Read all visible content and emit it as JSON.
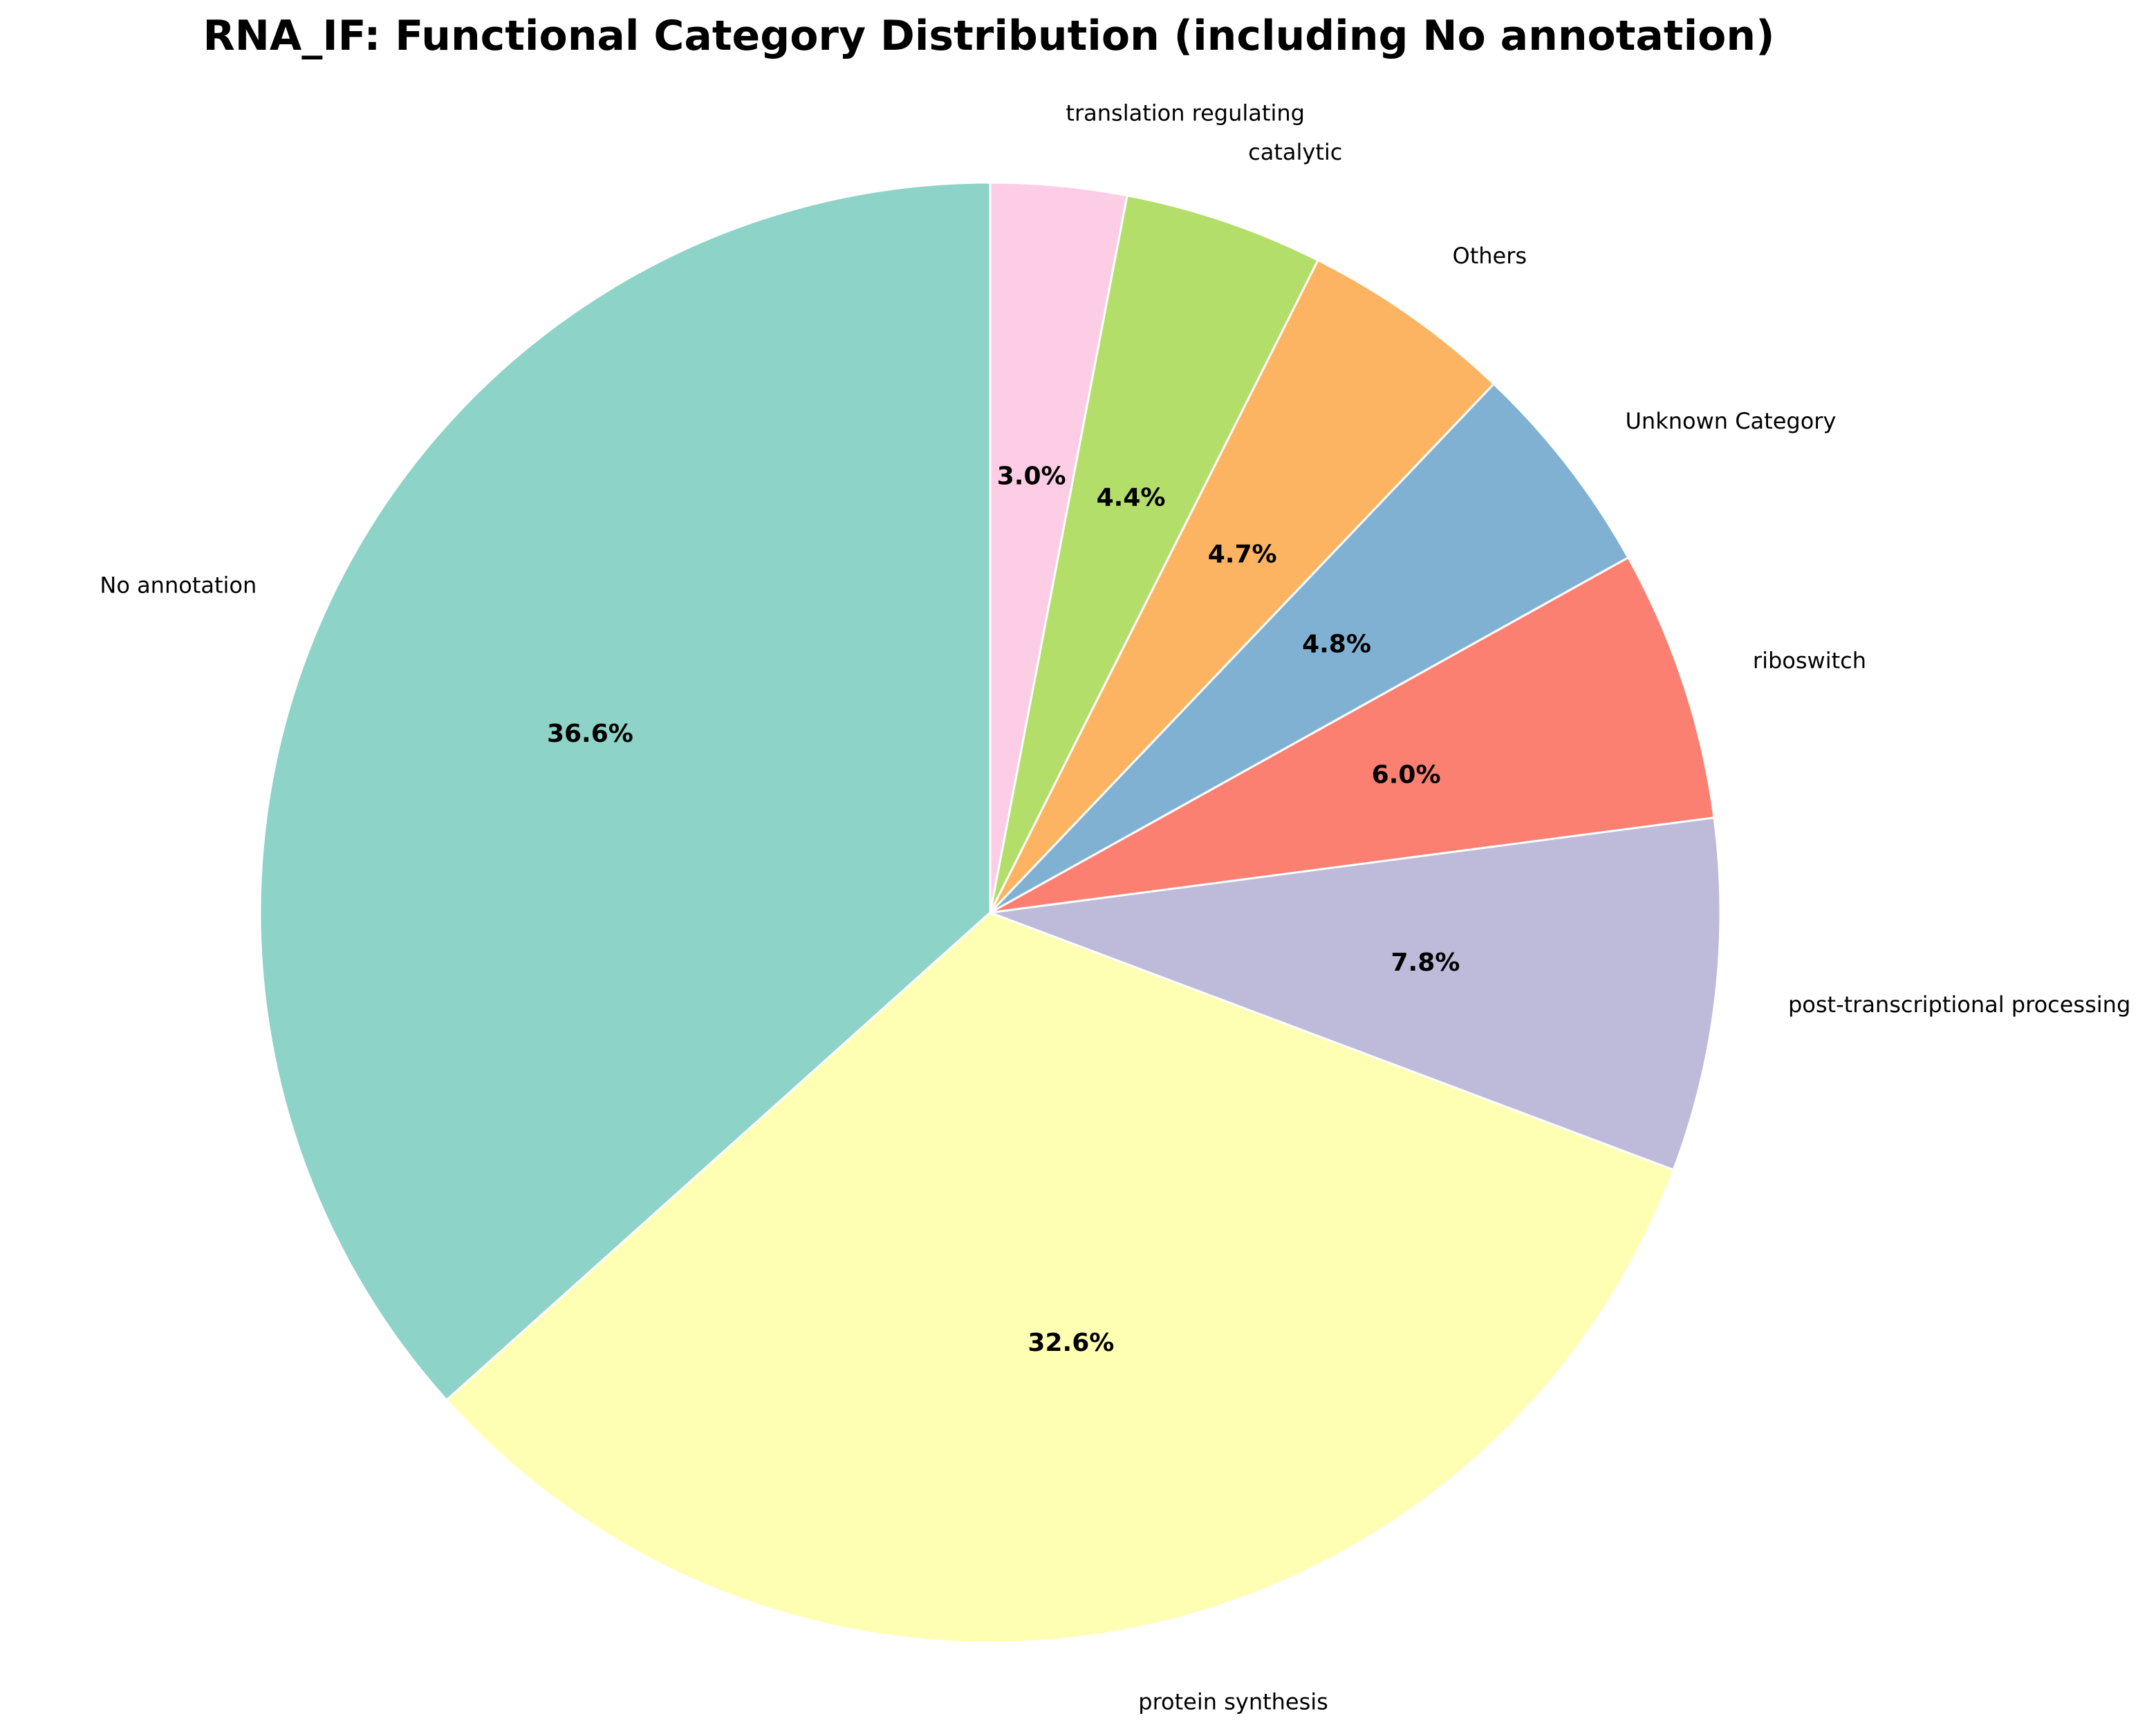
{
  "chart_data": {
    "type": "pie",
    "title": "RNA_IF: Functional Category Distribution (including No annotation)",
    "start_angle_deg": 90,
    "direction": "counterclockwise",
    "slices": [
      {
        "label": "No annotation",
        "value": 36.6,
        "pct_label": "36.6%",
        "color": "#8dd3c7"
      },
      {
        "label": "protein synthesis",
        "value": 32.6,
        "pct_label": "32.6%",
        "color": "#ffffb3"
      },
      {
        "label": "post-transcriptional processing",
        "value": 7.8,
        "pct_label": "7.8%",
        "color": "#bebada"
      },
      {
        "label": "riboswitch",
        "value": 6.0,
        "pct_label": "6.0%",
        "color": "#fb8072"
      },
      {
        "label": "Unknown Category",
        "value": 4.8,
        "pct_label": "4.8%",
        "color": "#80b1d3"
      },
      {
        "label": "Others",
        "value": 4.7,
        "pct_label": "4.7%",
        "color": "#fdb462"
      },
      {
        "label": "catalytic",
        "value": 4.4,
        "pct_label": "4.4%",
        "color": "#b3de69"
      },
      {
        "label": "translation regulating",
        "value": 3.0,
        "pct_label": "3.0%",
        "color": "#fccde5"
      }
    ]
  }
}
